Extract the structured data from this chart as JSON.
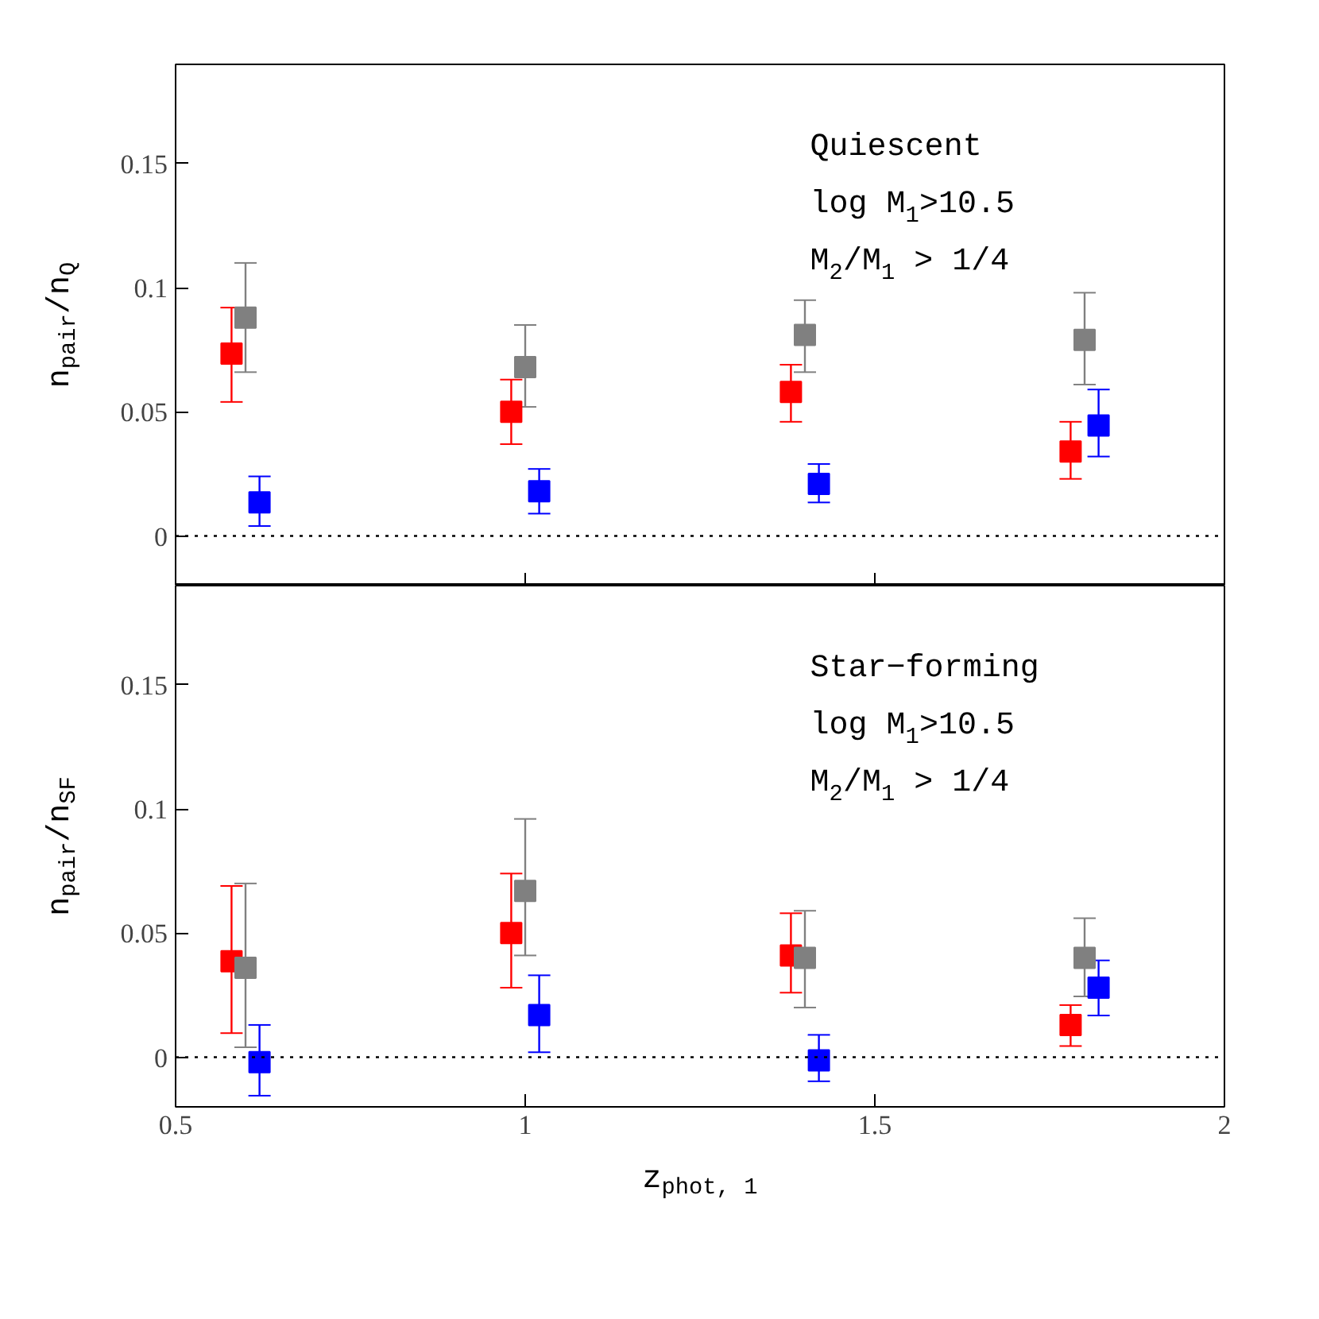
{
  "chart_data": [
    {
      "type": "scatter",
      "ylabel": "n$_{pair}$/n$_{Q}$",
      "annotations": [
        "Quiescent",
        "log M$_{1}$>10.5",
        "M$_{2}$/M$_{1}$ > 1/4"
      ],
      "xlim": [
        0.5,
        2
      ],
      "xticks": [
        0.5,
        1,
        1.5,
        2
      ],
      "ylim": [
        -0.02,
        0.19
      ],
      "yticks": [
        0,
        0.05,
        0.1,
        0.15
      ],
      "tick_labels": "y",
      "marker": "square",
      "grid": false,
      "ref_lines": [
        {
          "axis": "y",
          "value": 0,
          "label": null,
          "color": "#000000",
          "line_style": "dotted"
        }
      ],
      "series": [
        {
          "color": "#ff0000",
          "x": [
            0.58,
            0.98,
            1.38,
            1.78
          ],
          "values": [
            0.0735,
            0.05,
            0.058,
            0.034
          ],
          "errors": [
            [
              0.054,
              0.092
            ],
            [
              0.037,
              0.063
            ],
            [
              0.046,
              0.069
            ],
            [
              0.023,
              0.046
            ]
          ]
        },
        {
          "color": "#808080",
          "x": [
            0.6,
            1.0,
            1.4,
            1.8
          ],
          "values": [
            0.088,
            0.068,
            0.081,
            0.079
          ],
          "errors": [
            [
              0.066,
              0.11
            ],
            [
              0.052,
              0.085
            ],
            [
              0.066,
              0.095
            ],
            [
              0.061,
              0.098
            ]
          ]
        },
        {
          "color": "#0000ff",
          "x": [
            0.62,
            1.02,
            1.42,
            1.82
          ],
          "values": [
            0.0135,
            0.018,
            0.021,
            0.0445
          ],
          "errors": [
            [
              0.004,
              0.024
            ],
            [
              0.009,
              0.027
            ],
            [
              0.0135,
              0.029
            ],
            [
              0.032,
              0.059
            ]
          ]
        }
      ]
    },
    {
      "type": "scatter",
      "xlabel": "z$_{phot, 1}$",
      "ylabel": "n$_{pair}$/n$_{SF}$",
      "annotations": [
        "Star−forming",
        "log M$_{1}$>10.5",
        "M$_{2}$/M$_{1}$ > 1/4"
      ],
      "xlim": [
        0.5,
        2
      ],
      "xticks": [
        0.5,
        1,
        1.5,
        2
      ],
      "ylim": [
        -0.02,
        0.19
      ],
      "yticks": [
        0,
        0.05,
        0.1,
        0.15
      ],
      "marker": "square",
      "grid": false,
      "ref_lines": [
        {
          "axis": "y",
          "value": 0,
          "label": null,
          "color": "#000000",
          "line_style": "dotted"
        }
      ],
      "series": [
        {
          "color": "#ff0000",
          "x": [
            0.58,
            0.98,
            1.38,
            1.78
          ],
          "values": [
            0.0387,
            0.05,
            0.041,
            0.013
          ],
          "errors": [
            [
              0.0097,
              0.069
            ],
            [
              0.028,
              0.074
            ],
            [
              0.026,
              0.058
            ],
            [
              0.0045,
              0.021
            ]
          ]
        },
        {
          "color": "#808080",
          "x": [
            0.6,
            1.0,
            1.4,
            1.8
          ],
          "values": [
            0.036,
            0.067,
            0.04,
            0.04
          ],
          "errors": [
            [
              0.004,
              0.07
            ],
            [
              0.041,
              0.096
            ],
            [
              0.02,
              0.059
            ],
            [
              0.0245,
              0.056
            ]
          ]
        },
        {
          "color": "#0000ff",
          "x": [
            0.62,
            1.02,
            1.42,
            1.82
          ],
          "values": [
            -0.002,
            0.017,
            -0.0013,
            0.028
          ],
          "errors": [
            [
              -0.0155,
              0.013
            ],
            [
              0.002,
              0.033
            ],
            [
              -0.0097,
              0.009
            ],
            [
              0.0168,
              0.039
            ]
          ]
        }
      ]
    }
  ]
}
